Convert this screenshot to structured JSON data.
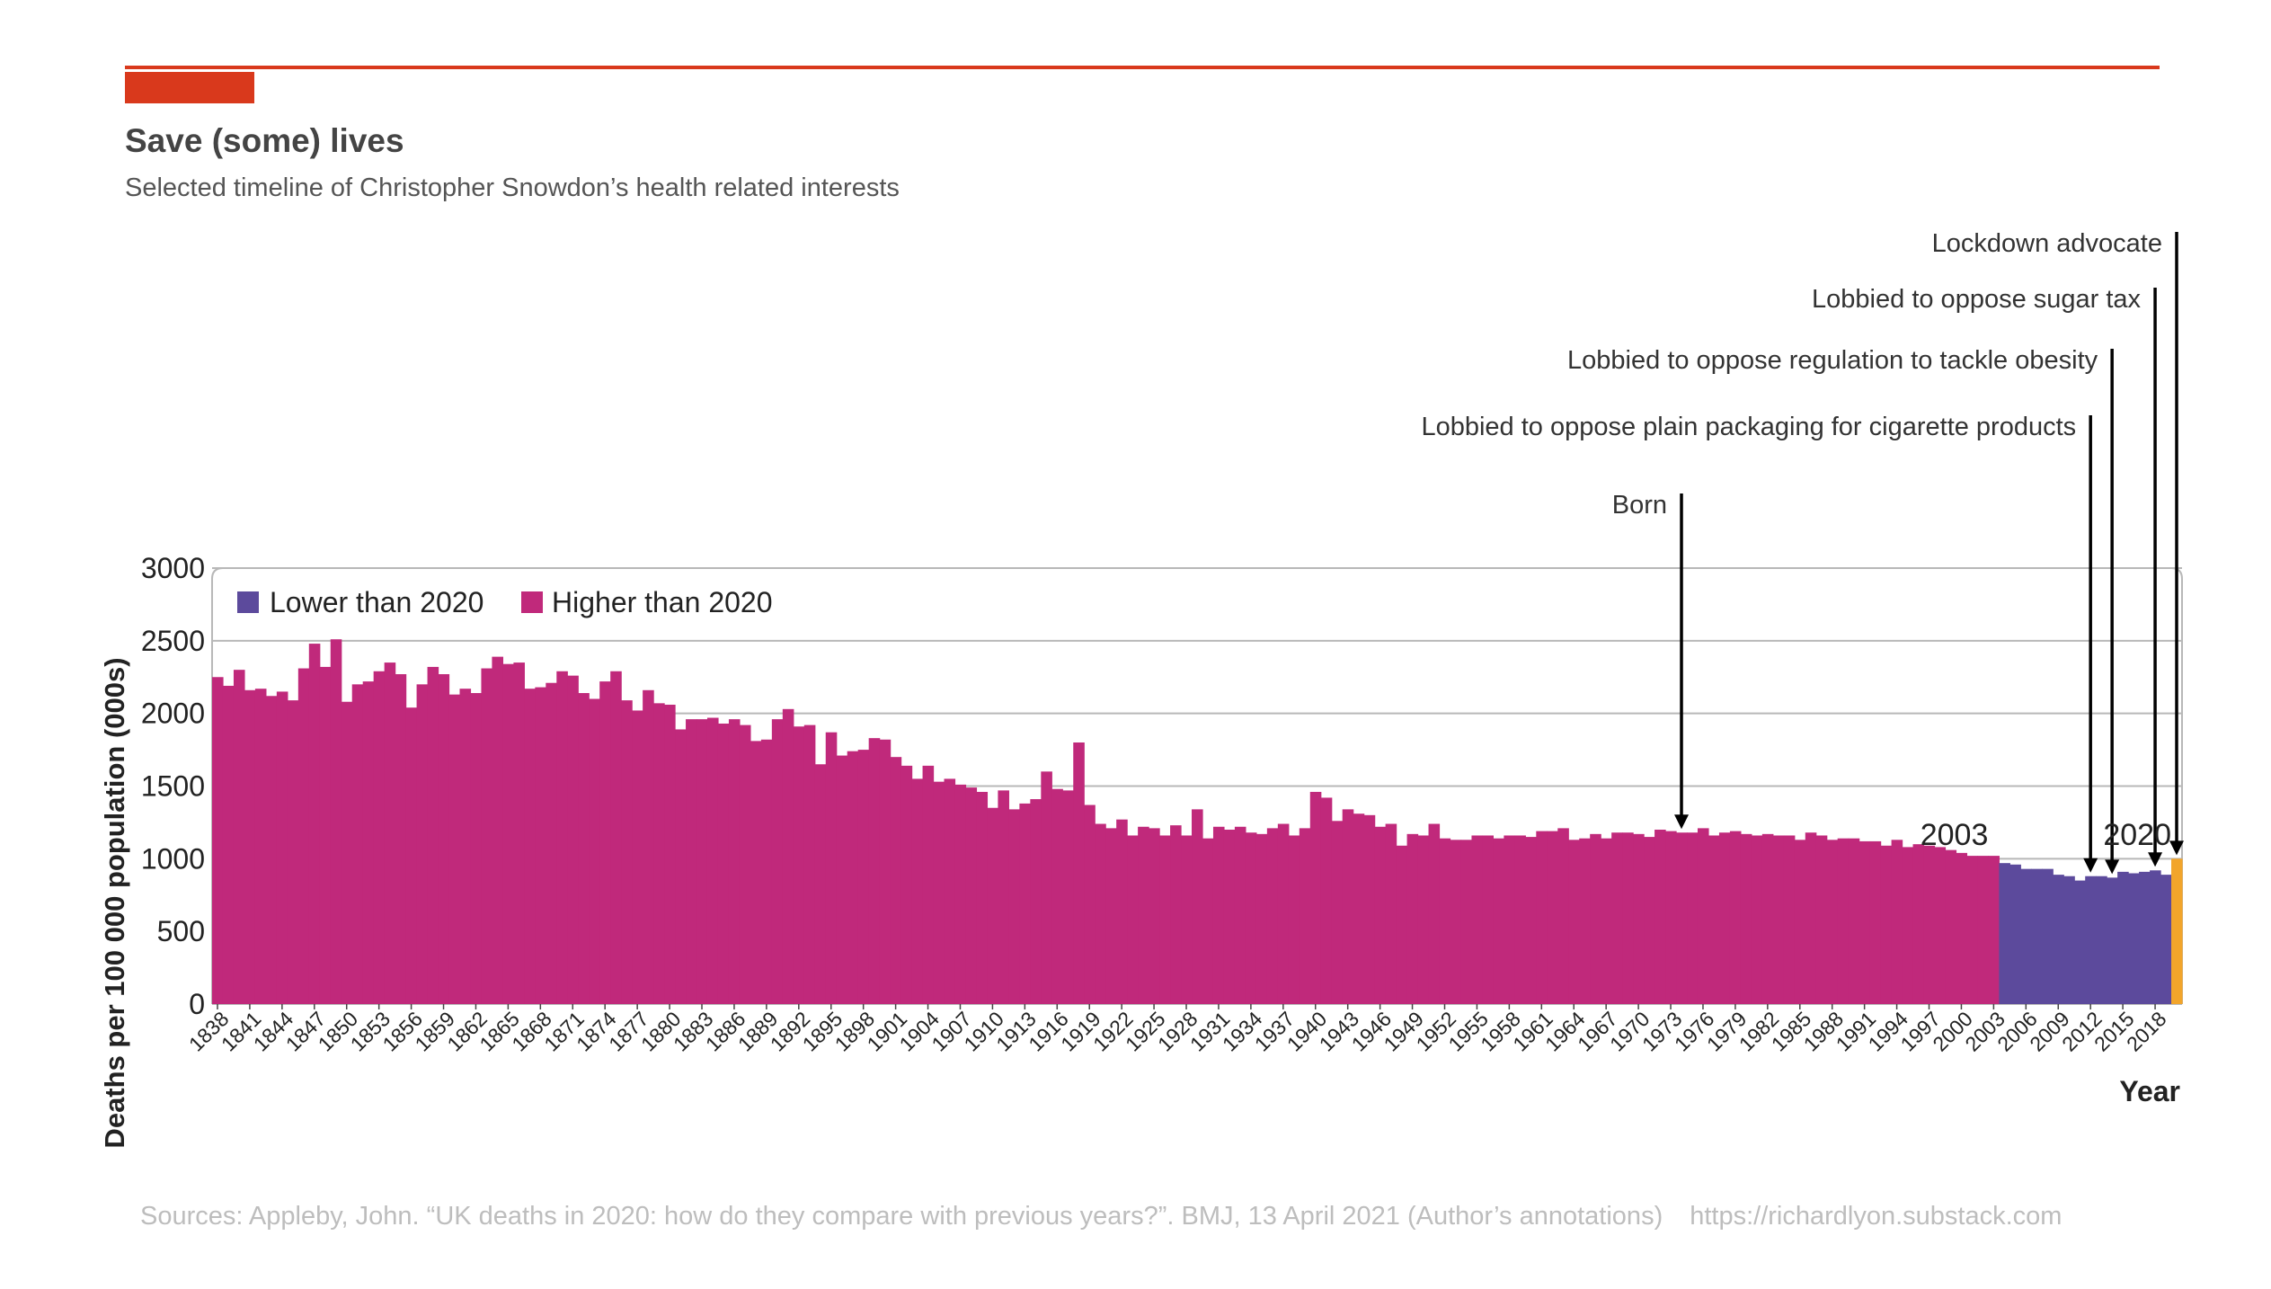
{
  "header": {
    "title": "Save (some) lives",
    "subtitle": "Selected timeline of Christopher Snowdon’s health related interests",
    "accent_color": "#d9391c"
  },
  "footer": {
    "source": "Sources: Appleby, John. “UK deaths in 2020: how do they compare with previous years?”. BMJ, 13 April 2021 (Author’s annotations)",
    "url": "https://richardlyon.substack.com"
  },
  "chart_data": {
    "type": "bar",
    "xlabel": "Year",
    "ylabel": "Deaths per 100 000 population (000s)",
    "ylim": [
      0,
      3000
    ],
    "yticks": [
      0,
      500,
      1000,
      1500,
      2000,
      2500,
      3000
    ],
    "grid": true,
    "legend_position": "top-left",
    "x_start": 1838,
    "x_end": 2020,
    "xtick_step": 3,
    "series": [
      {
        "name": "Lower than 2020",
        "color": "#5c4a9c"
      },
      {
        "name": "Higher than 2020",
        "color": "#c0297b"
      }
    ],
    "highlight": {
      "year": 2020,
      "color": "#f2a52b"
    },
    "values": [
      2250,
      2190,
      2300,
      2160,
      2170,
      2120,
      2150,
      2090,
      2310,
      2480,
      2320,
      2510,
      2080,
      2200,
      2220,
      2290,
      2350,
      2270,
      2040,
      2200,
      2320,
      2270,
      2130,
      2170,
      2140,
      2310,
      2390,
      2340,
      2350,
      2170,
      2180,
      2210,
      2290,
      2260,
      2140,
      2100,
      2220,
      2290,
      2090,
      2020,
      2160,
      2070,
      2060,
      1890,
      1960,
      1960,
      1970,
      1930,
      1960,
      1920,
      1810,
      1820,
      1960,
      2030,
      1910,
      1920,
      1650,
      1870,
      1710,
      1740,
      1750,
      1830,
      1820,
      1700,
      1640,
      1550,
      1640,
      1530,
      1550,
      1510,
      1490,
      1460,
      1350,
      1470,
      1340,
      1380,
      1410,
      1600,
      1480,
      1470,
      1800,
      1370,
      1240,
      1210,
      1270,
      1160,
      1220,
      1210,
      1160,
      1230,
      1160,
      1340,
      1140,
      1220,
      1200,
      1220,
      1180,
      1170,
      1210,
      1240,
      1160,
      1210,
      1460,
      1420,
      1260,
      1340,
      1310,
      1300,
      1220,
      1240,
      1090,
      1170,
      1160,
      1240,
      1140,
      1130,
      1130,
      1160,
      1160,
      1140,
      1160,
      1160,
      1150,
      1190,
      1190,
      1210,
      1130,
      1140,
      1170,
      1140,
      1180,
      1180,
      1170,
      1150,
      1200,
      1190,
      1180,
      1180,
      1210,
      1160,
      1180,
      1190,
      1170,
      1160,
      1170,
      1160,
      1160,
      1130,
      1180,
      1160,
      1130,
      1140,
      1140,
      1120,
      1120,
      1090,
      1130,
      1080,
      1100,
      1090,
      1080,
      1060,
      1040,
      1020,
      1020,
      1020,
      970,
      960,
      930,
      930,
      930,
      890,
      880,
      850,
      880,
      880,
      870,
      910,
      900,
      910,
      920,
      890,
      1000
    ],
    "annotations": [
      {
        "label": "Born",
        "year": 1974
      },
      {
        "label": "Lobbied to oppose plain packaging for cigarette products",
        "year": 2012
      },
      {
        "label": "Lobbied to oppose regulation to tackle obesity",
        "year": 2014
      },
      {
        "label": "Lobbied to oppose sugar tax",
        "year": 2018
      },
      {
        "label": "Lockdown advocate",
        "year": 2020
      }
    ],
    "inline_labels": [
      {
        "text": "2003",
        "year": 2003
      },
      {
        "text": "2020",
        "year": 2020
      }
    ]
  }
}
